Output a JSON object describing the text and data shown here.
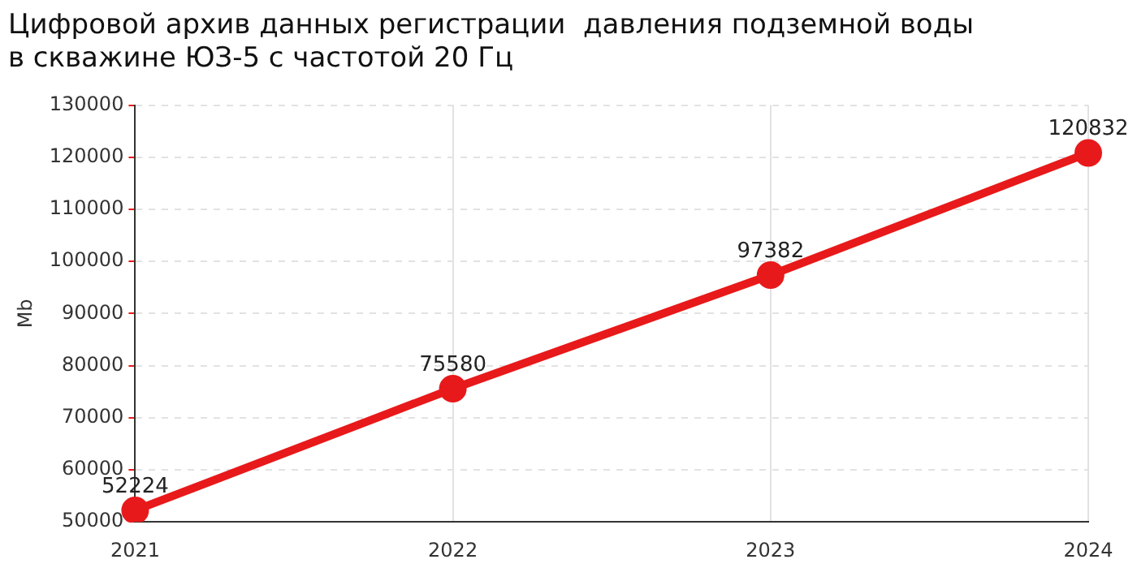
{
  "chart_data": {
    "type": "line",
    "title": "Цифровой архив данных регистрации  давления подземной воды\nв скважине ЮЗ-5 с частотой 20 Гц",
    "ylabel": "Mb",
    "categories": [
      "2021",
      "2022",
      "2023",
      "2024"
    ],
    "series": [
      {
        "color": "#e8191a",
        "values": [
          52224,
          75580,
          97382,
          120832
        ]
      }
    ],
    "ylim": [
      50000,
      130000
    ],
    "yticks": [
      50000,
      60000,
      70000,
      80000,
      90000,
      100000,
      110000,
      120000,
      130000
    ],
    "grid": true,
    "marker": "circle",
    "line_style": "solid",
    "data_labels": true,
    "legend": false
  }
}
